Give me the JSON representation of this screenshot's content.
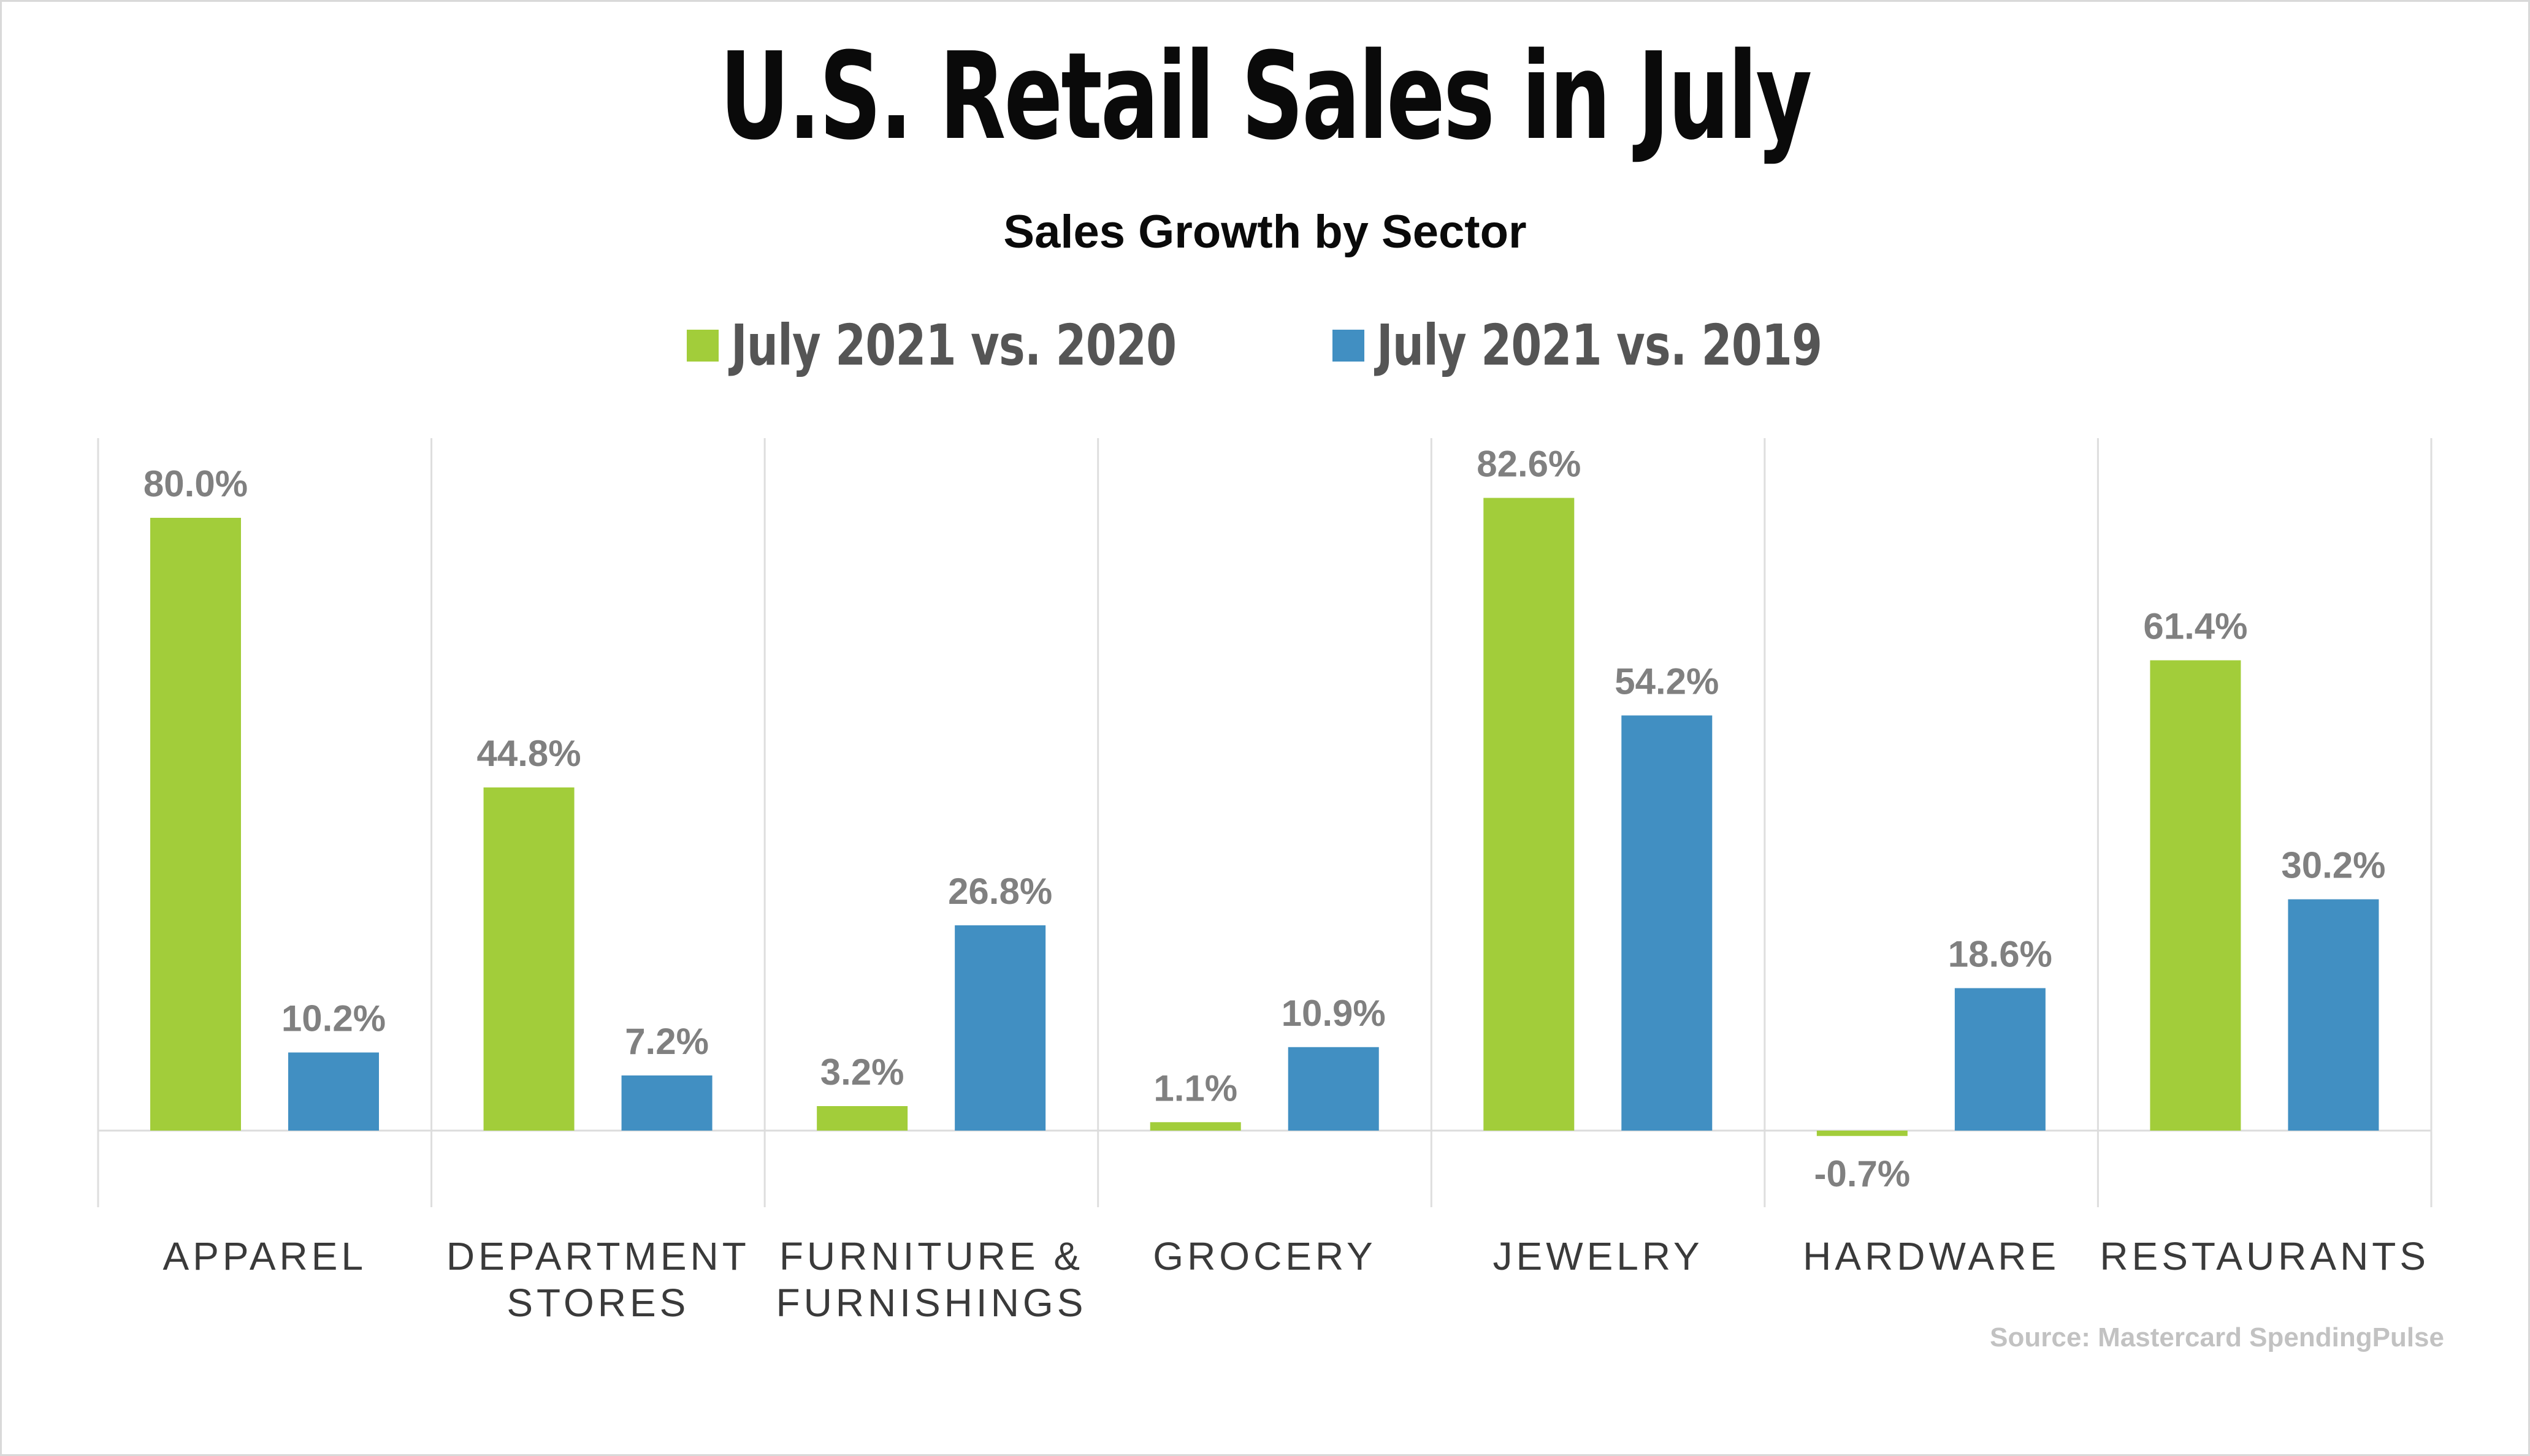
{
  "title": "U.S. Retail Sales in July",
  "subtitle": "Sales Growth by Sector",
  "source": "Source: Mastercard SpendingPulse",
  "chart_data": {
    "type": "bar",
    "title": "U.S. Retail Sales in July",
    "subtitle": "Sales Growth by Sector",
    "categories": [
      [
        "APPAREL"
      ],
      [
        "DEPARTMENT",
        "STORES"
      ],
      [
        "FURNITURE &",
        "FURNISHINGS"
      ],
      [
        "GROCERY"
      ],
      [
        "JEWELRY"
      ],
      [
        "HARDWARE"
      ],
      [
        "RESTAURANTS"
      ]
    ],
    "series": [
      {
        "name": "July 2021 vs. 2020",
        "color": "#a2cd3a",
        "values": [
          80.0,
          44.8,
          3.2,
          1.1,
          82.6,
          -0.7,
          61.4
        ],
        "labels": [
          "80.0%",
          "44.8%",
          "3.2%",
          "1.1%",
          "82.6%",
          "-0.7%",
          "61.4%"
        ]
      },
      {
        "name": "July 2021 vs. 2019",
        "color": "#418fc2",
        "values": [
          10.2,
          7.2,
          26.8,
          10.9,
          54.2,
          18.6,
          30.2
        ],
        "labels": [
          "10.2%",
          "7.2%",
          "26.8%",
          "10.9%",
          "54.2%",
          "18.6%",
          "30.2%"
        ]
      }
    ],
    "ylim": [
      -10,
      90
    ],
    "grid": false,
    "legend": "top-center",
    "xlabel": "",
    "ylabel": ""
  }
}
